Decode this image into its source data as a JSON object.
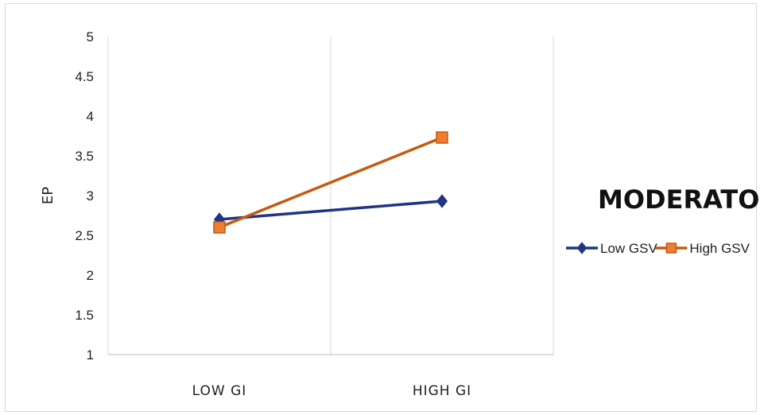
{
  "chart_data": {
    "type": "line",
    "categories": [
      "LOW GI",
      "HIGH GI"
    ],
    "series": [
      {
        "name": "Low GSV",
        "values": [
          2.7,
          2.93
        ],
        "color": "#1f3583",
        "marker": "diamond"
      },
      {
        "name": "High GSV",
        "values": [
          2.6,
          3.73
        ],
        "color": "#c55a11",
        "marker": "square",
        "markerFill": "#ed7d31"
      }
    ],
    "ylabel": "EP",
    "ylim": [
      1,
      5
    ],
    "yticks": [
      "1",
      "1.5",
      "2",
      "2.5",
      "3",
      "3.5",
      "4",
      "4.5",
      "5"
    ],
    "legend_title": "MODERATOR",
    "legend_position": "right",
    "grid": "vertical"
  }
}
